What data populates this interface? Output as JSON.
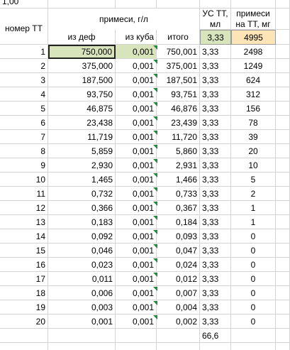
{
  "top_cell": "1,00",
  "header": {
    "row_label": "номер ТТ",
    "group": "примеси, г/л",
    "us": "УС ТТ, мл",
    "imp": "примеси на ТТ, мг",
    "sub": [
      "из деф",
      "из куба",
      "итого",
      "3,33",
      "4995"
    ]
  },
  "table": {
    "rows": [
      [
        "1",
        "750,000",
        "0,001",
        "750,001",
        "3,33",
        "2498"
      ],
      [
        "2",
        "375,000",
        "0,001",
        "375,001",
        "3,33",
        "1249"
      ],
      [
        "3",
        "187,500",
        "0,001",
        "187,501",
        "3,33",
        "624"
      ],
      [
        "4",
        "93,750",
        "0,001",
        "93,751",
        "3,33",
        "312"
      ],
      [
        "5",
        "46,875",
        "0,001",
        "46,876",
        "3,33",
        "156"
      ],
      [
        "6",
        "23,438",
        "0,001",
        "23,439",
        "3,33",
        "78"
      ],
      [
        "7",
        "11,719",
        "0,001",
        "11,720",
        "3,33",
        "39"
      ],
      [
        "8",
        "5,859",
        "0,001",
        "5,860",
        "3,33",
        "20"
      ],
      [
        "9",
        "2,930",
        "0,001",
        "2,931",
        "3,33",
        "10"
      ],
      [
        "10",
        "1,465",
        "0,001",
        "1,466",
        "3,33",
        "5"
      ],
      [
        "11",
        "0,732",
        "0,001",
        "0,733",
        "3,33",
        "2"
      ],
      [
        "12",
        "0,366",
        "0,001",
        "0,367",
        "3,33",
        "1"
      ],
      [
        "13",
        "0,183",
        "0,001",
        "0,184",
        "3,33",
        "1"
      ],
      [
        "14",
        "0,092",
        "0,001",
        "0,093",
        "3,33",
        "0"
      ],
      [
        "15",
        "0,046",
        "0,001",
        "0,047",
        "3,33",
        "0"
      ],
      [
        "16",
        "0,023",
        "0,001",
        "0,024",
        "3,33",
        "0"
      ],
      [
        "17",
        "0,011",
        "0,001",
        "0,012",
        "3,33",
        "0"
      ],
      [
        "18",
        "0,006",
        "0,001",
        "0,007",
        "3,33",
        "0"
      ],
      [
        "19",
        "0,003",
        "0,001",
        "0,004",
        "3,33",
        "0"
      ],
      [
        "20",
        "0,001",
        "0,001",
        "0,002",
        "3,33",
        "0"
      ]
    ],
    "total": "66,6"
  }
}
